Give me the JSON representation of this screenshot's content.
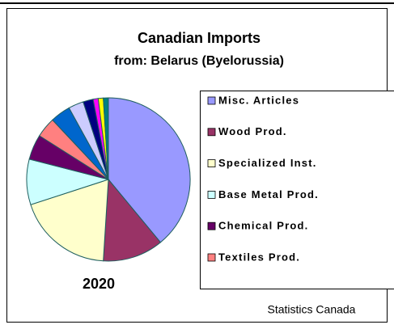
{
  "chart_data": {
    "type": "pie",
    "title": "Canadian Imports",
    "subtitle": "from: Belarus (Byelorussia)",
    "year": "2020",
    "source": "Statistics Canada",
    "categories": [
      "Misc. Articles",
      "Wood Prod.",
      "Specialized Inst.",
      "Base Metal Prod.",
      "Chemical Prod.",
      "Textiles Prod.",
      null,
      null,
      null,
      null,
      null,
      null
    ],
    "values": [
      39,
      12,
      19,
      9,
      5,
      4,
      4,
      3,
      2,
      1,
      1,
      1
    ],
    "colors": [
      "#9999ff",
      "#993366",
      "#ffffcc",
      "#ccffff",
      "#660066",
      "#ff8080",
      "#0066cc",
      "#ccccff",
      "#000080",
      "#ff00ff",
      "#ffff00",
      "#008080"
    ]
  }
}
